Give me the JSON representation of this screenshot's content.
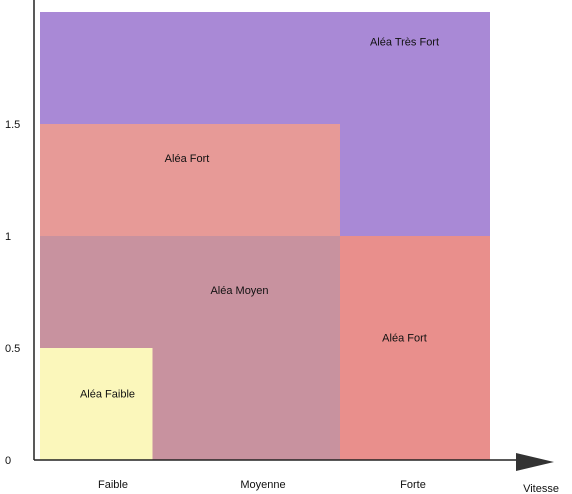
{
  "chart_data": {
    "type": "heatmap",
    "title": "",
    "xlabel": "Vitesse",
    "ylabel": "",
    "x_categories": [
      "Faible",
      "Moyenne",
      "Forte"
    ],
    "y_ticks": [
      "0",
      "0.5",
      "1",
      "1.5"
    ],
    "y_tick_values": [
      0,
      0.5,
      1,
      1.5
    ],
    "ylim": [
      0,
      2
    ],
    "grid": false,
    "zones": [
      {
        "label": "Aléa Très Fort",
        "x": [
          0,
          3
        ],
        "y": [
          1.5,
          2.0
        ],
        "color": "#a989d6"
      },
      {
        "label": "Aléa Très Fort",
        "x": [
          2,
          3
        ],
        "y": [
          1.0,
          1.5
        ],
        "color": "#a989d6"
      },
      {
        "label": "Aléa Fort",
        "x": [
          0,
          2
        ],
        "y": [
          1.0,
          1.5
        ],
        "color": "#e79a97"
      },
      {
        "label": "Aléa Moyen",
        "x": [
          0,
          2
        ],
        "y": [
          0.5,
          1.0
        ],
        "color": "#c8929f"
      },
      {
        "label": "Aléa Moyen",
        "x": [
          0.75,
          2
        ],
        "y": [
          0.0,
          0.5
        ],
        "color": "#c8929f"
      },
      {
        "label": "Aléa Fort",
        "x": [
          2,
          3
        ],
        "y": [
          0.0,
          1.0
        ],
        "color": "#e98f8c"
      },
      {
        "label": "Aléa Faible",
        "x": [
          0,
          0.75
        ],
        "y": [
          0.0,
          0.5
        ],
        "color": "#fbf7bb"
      }
    ],
    "zone_labels": [
      {
        "text": "Aléa Très Fort",
        "x": 2.43,
        "y": 1.85
      },
      {
        "text": "Aléa Fort",
        "x": 0.98,
        "y": 1.33
      },
      {
        "text": "Aléa Moyen",
        "x": 1.33,
        "y": 0.74
      },
      {
        "text": "Aléa Fort",
        "x": 2.43,
        "y": 0.53
      },
      {
        "text": "Aléa Faible",
        "x": 0.45,
        "y": 0.28
      }
    ]
  }
}
